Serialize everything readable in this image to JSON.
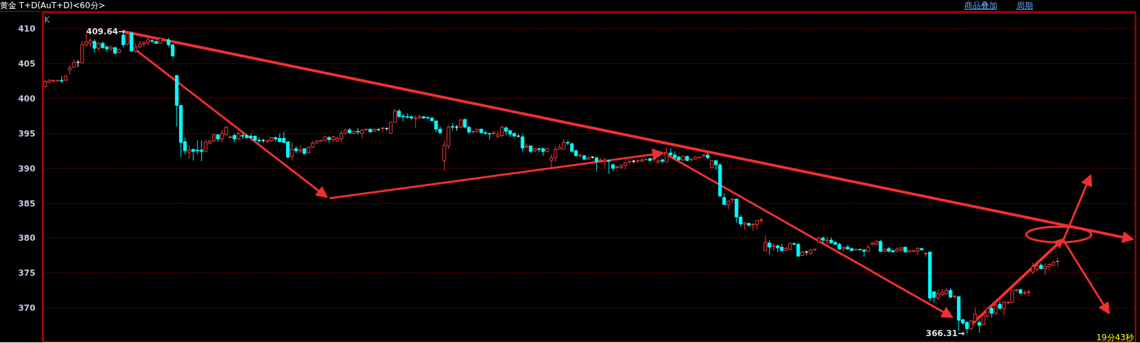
{
  "chart_data": {
    "type": "candlestick",
    "title": "黄金 T+D(AuT+D)<60分>",
    "annotations": [
      "K",
      "商品叠加",
      "周期",
      "19分43秒",
      "409.64→",
      "366.31→"
    ],
    "ylim": [
      365,
      412.3
    ],
    "yticks": [
      370,
      375,
      380,
      385,
      390,
      395,
      400,
      405,
      410
    ],
    "grid": "y",
    "tick_labels": "y",
    "categories": [
      null,
      null,
      null,
      null,
      null,
      null,
      null,
      null,
      null,
      null,
      null,
      null,
      null,
      null,
      null,
      null,
      null,
      null,
      null,
      null,
      null,
      null,
      null,
      null,
      null,
      null,
      null,
      null,
      null,
      null,
      null,
      null,
      null,
      null,
      null,
      null,
      null,
      null,
      null,
      null,
      null,
      null,
      null,
      null,
      null,
      null,
      null,
      null,
      null,
      null,
      null,
      null,
      null,
      null,
      null,
      null,
      null,
      null,
      null,
      null,
      null,
      null,
      null,
      null,
      null,
      null,
      null,
      null,
      null,
      null,
      null,
      null,
      null,
      null,
      null,
      null,
      null,
      null,
      null,
      null,
      null,
      null,
      null,
      null,
      null,
      null,
      null,
      null,
      null,
      null,
      null,
      null,
      null,
      null,
      null,
      null,
      null,
      null,
      null,
      null,
      null,
      null,
      null,
      null,
      null,
      null,
      null,
      null,
      null,
      null,
      null,
      null,
      null,
      null,
      null,
      null,
      null,
      null,
      null,
      null,
      null,
      null,
      null,
      null,
      null,
      null,
      null,
      null,
      null,
      null,
      null,
      null,
      null,
      null,
      null,
      null,
      null,
      null,
      null,
      null,
      null,
      null,
      null,
      null,
      null,
      null,
      null,
      null,
      null,
      null,
      null,
      null,
      null,
      null,
      null,
      null,
      null,
      null,
      null,
      null,
      null,
      null,
      null,
      null,
      null,
      null,
      null,
      null,
      null,
      null,
      null,
      null,
      null,
      null,
      null,
      null,
      null,
      null,
      null,
      null,
      null,
      null,
      null,
      null,
      null,
      null,
      null,
      null,
      null,
      null,
      null,
      null,
      null,
      null,
      null,
      null,
      null,
      null,
      null,
      null,
      null,
      null,
      null,
      null,
      null,
      null,
      null,
      null,
      null,
      null,
      null,
      null,
      null,
      null,
      null,
      null,
      null,
      null,
      null,
      null,
      null,
      null,
      null,
      null,
      null,
      null,
      null,
      null,
      null,
      null,
      null,
      null,
      null,
      null,
      null,
      null,
      null,
      null,
      null,
      null,
      null,
      null,
      null,
      null,
      null,
      null,
      null
    ],
    "ohlc": [
      [
        401.7,
        402.7,
        401.6,
        402.4
      ],
      [
        402.3,
        402.8,
        402.2,
        402.6
      ],
      [
        402.5,
        402.7,
        402.3,
        402.6
      ],
      [
        402.5,
        402.7,
        402.4,
        402.6
      ],
      [
        402.6,
        403.2,
        402.2,
        402.5
      ],
      [
        402.6,
        403.4,
        402.5,
        403.2
      ],
      [
        404.1,
        404.7,
        403.4,
        404.4
      ],
      [
        404.5,
        405.5,
        404.4,
        405.2
      ],
      [
        405.2,
        405.5,
        404.5,
        405.2
      ],
      [
        405.1,
        408.2,
        405.1,
        407.7
      ],
      [
        407.7,
        409.3,
        407.4,
        408.1
      ],
      [
        407.9,
        408.7,
        407.4,
        408.3
      ],
      [
        408.2,
        408.5,
        406.6,
        407.2
      ],
      [
        407.2,
        408.1,
        406.7,
        407.9
      ],
      [
        407.9,
        408.2,
        407.1,
        407.3
      ],
      [
        407.4,
        407.6,
        406.7,
        407.1
      ],
      [
        407.1,
        407.6,
        406.8,
        407.4
      ],
      [
        407.3,
        407.4,
        406.3,
        406.5
      ],
      [
        406.6,
        407.1,
        406.5,
        407.0
      ],
      [
        409.1,
        409.6,
        407.3,
        407.7
      ],
      [
        407.8,
        409.64,
        407.6,
        409.3
      ],
      [
        409.4,
        409.6,
        406.7,
        406.8
      ],
      [
        406.8,
        407.9,
        406.5,
        407.4
      ],
      [
        407.4,
        408.2,
        407.2,
        407.8
      ],
      [
        407.8,
        408.2,
        407.4,
        408.0
      ],
      [
        408.0,
        408.8,
        407.6,
        408.4
      ],
      [
        408.3,
        408.5,
        408.0,
        408.2
      ],
      [
        408.2,
        408.2,
        407.8,
        407.9
      ],
      [
        407.9,
        408.6,
        407.8,
        408.6
      ],
      [
        408.4,
        408.6,
        408.3,
        408.5
      ],
      [
        408.4,
        408.7,
        407.4,
        407.7
      ],
      [
        407.7,
        407.8,
        405.9,
        406.1
      ],
      [
        403.3,
        403.3,
        396.0,
        399.0
      ],
      [
        399.0,
        399.0,
        391.6,
        393.7
      ],
      [
        393.8,
        394.4,
        392.0,
        392.5
      ],
      [
        392.3,
        393.3,
        391.4,
        392.6
      ],
      [
        392.7,
        392.8,
        391.1,
        392.4
      ],
      [
        392.6,
        394.0,
        392.0,
        392.5
      ],
      [
        392.6,
        394.0,
        391.0,
        392.4
      ],
      [
        392.4,
        394.1,
        392.3,
        393.7
      ],
      [
        393.6,
        394.1,
        393.4,
        393.9
      ],
      [
        393.9,
        395.0,
        393.8,
        394.8
      ],
      [
        394.8,
        394.9,
        393.8,
        394.2
      ],
      [
        394.2,
        395.5,
        393.7,
        395.0
      ],
      [
        394.8,
        396.1,
        394.7,
        395.9
      ],
      [
        394.4,
        394.7,
        394.4,
        394.5
      ],
      [
        394.7,
        395.0,
        393.7,
        394.2
      ],
      [
        394.2,
        395.2,
        394.1,
        395.0
      ],
      [
        394.7,
        395.1,
        394.2,
        394.6
      ],
      [
        394.7,
        394.9,
        394.2,
        394.4
      ],
      [
        394.6,
        395.0,
        394.2,
        394.4
      ],
      [
        394.6,
        394.7,
        394.0,
        394.0
      ],
      [
        394.0,
        394.4,
        393.6,
        393.9
      ],
      [
        394.0,
        394.2,
        393.7,
        394.0
      ],
      [
        393.8,
        394.1,
        393.7,
        394.0
      ],
      [
        393.9,
        394.5,
        393.9,
        394.4
      ],
      [
        394.4,
        394.5,
        393.8,
        394.2
      ],
      [
        394.3,
        395.0,
        393.7,
        393.8
      ],
      [
        394.3,
        395.2,
        393.6,
        393.7
      ],
      [
        393.8,
        393.8,
        391.4,
        391.6
      ],
      [
        391.7,
        393.7,
        391.1,
        392.7
      ],
      [
        392.8,
        393.2,
        392.2,
        392.5
      ],
      [
        392.5,
        393.3,
        392.2,
        392.6
      ],
      [
        392.8,
        392.8,
        392.0,
        392.1
      ],
      [
        392.2,
        393.1,
        392.1,
        393.0
      ],
      [
        393.0,
        393.9,
        392.9,
        393.6
      ],
      [
        393.6,
        394.0,
        393.6,
        393.9
      ],
      [
        393.9,
        394.0,
        393.9,
        394.0
      ],
      [
        394.0,
        394.5,
        394.0,
        394.5
      ],
      [
        394.4,
        394.6,
        393.7,
        394.1
      ],
      [
        394.1,
        394.7,
        393.7,
        394.5
      ],
      [
        393.9,
        394.5,
        393.8,
        394.3
      ],
      [
        394.2,
        395.4,
        393.7,
        395.0
      ],
      [
        395.0,
        395.6,
        394.9,
        395.5
      ],
      [
        395.5,
        395.8,
        394.9,
        395.1
      ],
      [
        395.0,
        395.4,
        394.8,
        395.3
      ],
      [
        395.3,
        395.8,
        394.8,
        395.2
      ],
      [
        395.0,
        395.6,
        394.3,
        395.5
      ],
      [
        395.5,
        395.7,
        395.4,
        395.6
      ],
      [
        395.6,
        395.7,
        395.2,
        395.2
      ],
      [
        395.3,
        395.7,
        395.2,
        395.6
      ],
      [
        395.6,
        395.7,
        395.3,
        395.5
      ],
      [
        395.7,
        395.8,
        395.2,
        395.8
      ],
      [
        395.7,
        395.8,
        395.4,
        395.7
      ],
      [
        395.0,
        396.6,
        395.0,
        396.6
      ],
      [
        396.6,
        398.5,
        396.6,
        398.2
      ],
      [
        398.2,
        398.5,
        397.3,
        397.4
      ],
      [
        397.5,
        397.8,
        396.7,
        397.4
      ],
      [
        397.4,
        397.9,
        397.1,
        397.3
      ],
      [
        397.4,
        397.5,
        396.9,
        397.2
      ],
      [
        397.1,
        397.6,
        395.8,
        397.2
      ],
      [
        397.2,
        397.7,
        397.1,
        397.4
      ],
      [
        397.4,
        397.5,
        397.1,
        397.2
      ],
      [
        397.3,
        397.4,
        397.0,
        397.2
      ],
      [
        397.2,
        397.3,
        396.8,
        396.8
      ],
      [
        396.8,
        396.8,
        395.2,
        395.6
      ],
      [
        395.6,
        396.0,
        394.9,
        395.1
      ],
      [
        391.1,
        393.9,
        389.6,
        393.3
      ],
      [
        393.2,
        396.2,
        392.7,
        395.9
      ],
      [
        396.0,
        396.5,
        395.4,
        395.9
      ],
      [
        395.9,
        396.2,
        395.4,
        395.9
      ],
      [
        395.9,
        397.1,
        395.7,
        396.9
      ],
      [
        397.0,
        397.1,
        395.7,
        395.9
      ],
      [
        395.9,
        396.0,
        394.9,
        395.2
      ],
      [
        395.2,
        395.4,
        395.0,
        395.3
      ],
      [
        395.3,
        395.7,
        395.1,
        395.6
      ],
      [
        395.6,
        395.7,
        395.0,
        395.1
      ],
      [
        395.1,
        395.4,
        394.8,
        395.0
      ],
      [
        395.0,
        395.0,
        394.1,
        394.9
      ],
      [
        395.0,
        395.3,
        394.7,
        395.1
      ],
      [
        394.5,
        395.3,
        394.4,
        394.8
      ],
      [
        394.7,
        396.1,
        394.4,
        395.9
      ],
      [
        395.8,
        396.0,
        394.7,
        395.3
      ],
      [
        395.4,
        395.5,
        394.5,
        394.9
      ],
      [
        395.0,
        395.1,
        394.5,
        394.6
      ],
      [
        394.6,
        394.9,
        394.4,
        394.6
      ],
      [
        394.5,
        394.9,
        392.4,
        392.9
      ],
      [
        393.0,
        393.5,
        392.9,
        393.2
      ],
      [
        393.2,
        393.2,
        392.2,
        392.4
      ],
      [
        392.5,
        392.9,
        392.3,
        392.8
      ],
      [
        392.8,
        392.9,
        392.3,
        392.7
      ],
      [
        392.8,
        393.0,
        391.8,
        392.4
      ],
      [
        392.4,
        392.9,
        392.4,
        392.8
      ],
      [
        391.1,
        392.0,
        390.0,
        391.5
      ],
      [
        391.5,
        393.2,
        390.9,
        392.7
      ],
      [
        392.7,
        393.5,
        392.7,
        393.0
      ],
      [
        392.7,
        394.2,
        392.7,
        393.7
      ],
      [
        393.7,
        393.9,
        393.3,
        393.6
      ],
      [
        393.5,
        393.7,
        392.4,
        392.4
      ],
      [
        392.5,
        392.7,
        391.7,
        391.8
      ],
      [
        391.8,
        392.0,
        391.5,
        391.9
      ],
      [
        391.8,
        391.9,
        391.2,
        391.3
      ],
      [
        391.3,
        391.7,
        391.2,
        391.5
      ],
      [
        391.6,
        391.7,
        391.4,
        391.6
      ],
      [
        391.5,
        391.6,
        389.6,
        391.0
      ],
      [
        391.1,
        391.5,
        390.8,
        391.2
      ],
      [
        391.0,
        391.5,
        390.1,
        391.2
      ],
      [
        391.1,
        391.2,
        389.2,
        391.0
      ],
      [
        390.5,
        390.7,
        389.6,
        390.0
      ],
      [
        390.1,
        390.4,
        389.9,
        390.2
      ],
      [
        390.1,
        390.6,
        389.9,
        390.4
      ],
      [
        390.4,
        391.0,
        389.8,
        390.8
      ],
      [
        390.9,
        391.1,
        390.6,
        391.0
      ],
      [
        391.0,
        391.2,
        390.7,
        391.0
      ],
      [
        391.0,
        391.3,
        390.7,
        391.1
      ],
      [
        391.0,
        391.5,
        390.9,
        391.2
      ],
      [
        391.2,
        391.4,
        391.1,
        391.3
      ],
      [
        391.4,
        391.5,
        391.0,
        391.1
      ],
      [
        391.3,
        391.5,
        390.9,
        391.4
      ],
      [
        390.8,
        391.3,
        390.7,
        391.1
      ],
      [
        391.2,
        391.4,
        390.7,
        391.0
      ],
      [
        390.9,
        393.0,
        390.9,
        392.2
      ],
      [
        392.2,
        392.9,
        391.8,
        391.9
      ],
      [
        391.9,
        392.4,
        391.3,
        391.5
      ],
      [
        391.6,
        391.8,
        391.1,
        391.2
      ],
      [
        391.2,
        391.8,
        391.0,
        391.7
      ],
      [
        391.7,
        391.8,
        391.0,
        391.1
      ],
      [
        391.2,
        391.4,
        390.9,
        391.3
      ],
      [
        391.3,
        391.7,
        391.2,
        391.6
      ],
      [
        391.5,
        391.7,
        391.4,
        391.6
      ],
      [
        391.7,
        392.1,
        391.6,
        391.9
      ],
      [
        391.9,
        392.2,
        391.3,
        391.5
      ],
      [
        390.1,
        391.1,
        390.0,
        391.1
      ],
      [
        391.1,
        391.1,
        389.8,
        390.5
      ],
      [
        390.5,
        390.7,
        386.0,
        386.0
      ],
      [
        385.8,
        386.4,
        384.8,
        384.8
      ],
      [
        384.8,
        385.4,
        384.1,
        385.3
      ],
      [
        385.5,
        385.6,
        385.0,
        385.6
      ],
      [
        385.6,
        385.6,
        382.2,
        383.0
      ],
      [
        383.0,
        383.3,
        381.6,
        382.0
      ],
      [
        382.0,
        382.3,
        381.2,
        382.2
      ],
      [
        382.1,
        382.2,
        381.7,
        381.8
      ],
      [
        381.9,
        382.1,
        381.0,
        382.0
      ],
      [
        381.9,
        382.6,
        381.2,
        382.5
      ],
      [
        382.5,
        382.9,
        382.1,
        382.6
      ],
      [
        378.2,
        380.4,
        378.2,
        379.4
      ],
      [
        379.3,
        379.7,
        377.6,
        378.7
      ],
      [
        378.8,
        379.2,
        378.2,
        378.9
      ],
      [
        378.9,
        379.0,
        378.0,
        378.6
      ],
      [
        378.7,
        379.2,
        378.1,
        378.2
      ],
      [
        378.2,
        378.7,
        378.1,
        378.5
      ],
      [
        378.4,
        379.4,
        378.3,
        379.2
      ],
      [
        379.2,
        379.4,
        379.0,
        379.1
      ],
      [
        379.1,
        379.3,
        377.3,
        377.4
      ],
      [
        377.5,
        378.2,
        377.4,
        378.0
      ],
      [
        378.0,
        378.2,
        377.6,
        378.0
      ],
      [
        377.8,
        378.4,
        377.6,
        378.3
      ],
      [
        378.3,
        378.5,
        378.2,
        378.4
      ],
      [
        379.4,
        380.2,
        379.3,
        380.0
      ],
      [
        380.0,
        380.2,
        379.2,
        379.7
      ],
      [
        379.6,
        380.2,
        379.2,
        379.7
      ],
      [
        379.7,
        380.1,
        379.2,
        379.3
      ],
      [
        379.4,
        379.5,
        379.0,
        379.1
      ],
      [
        379.1,
        379.3,
        378.4,
        378.4
      ],
      [
        378.5,
        378.7,
        378.0,
        378.7
      ],
      [
        378.7,
        379.0,
        378.4,
        378.4
      ],
      [
        378.5,
        378.6,
        378.2,
        378.2
      ],
      [
        378.3,
        378.4,
        378.2,
        378.4
      ],
      [
        378.4,
        378.4,
        378.3,
        378.3
      ],
      [
        378.3,
        378.4,
        377.3,
        378.1
      ],
      [
        378.1,
        379.0,
        378.0,
        378.7
      ],
      [
        379.1,
        379.4,
        378.9,
        379.3
      ],
      [
        379.1,
        379.7,
        379.0,
        379.5
      ],
      [
        379.5,
        379.7,
        378.0,
        378.1
      ],
      [
        378.1,
        378.5,
        378.0,
        378.4
      ],
      [
        378.5,
        378.7,
        378.0,
        378.1
      ],
      [
        378.2,
        378.3,
        378.0,
        378.0
      ],
      [
        378.1,
        378.7,
        378.0,
        378.4
      ],
      [
        378.3,
        378.7,
        378.0,
        378.6
      ],
      [
        378.7,
        378.7,
        378.0,
        378.0
      ],
      [
        378.0,
        378.2,
        378.0,
        378.2
      ],
      [
        378.1,
        378.2,
        378.0,
        378.2
      ],
      [
        378.1,
        378.7,
        377.6,
        378.5
      ],
      [
        378.5,
        378.6,
        378.2,
        378.3
      ],
      [
        377.7,
        378.0,
        377.3,
        377.8
      ],
      [
        378.0,
        378.0,
        370.9,
        371.4
      ],
      [
        372.3,
        372.4,
        370.7,
        371.5
      ],
      [
        371.4,
        372.7,
        371.1,
        372.0
      ],
      [
        371.9,
        372.7,
        371.6,
        372.2
      ],
      [
        372.0,
        372.8,
        371.9,
        372.5
      ],
      [
        372.5,
        372.8,
        371.5,
        371.5
      ],
      [
        371.6,
        371.8,
        371.2,
        371.7
      ],
      [
        371.6,
        371.7,
        366.7,
        368.2
      ],
      [
        368.3,
        368.4,
        367.6,
        367.8
      ],
      [
        367.9,
        368.1,
        366.31,
        367.0
      ],
      [
        367.0,
        368.3,
        366.8,
        368.1
      ],
      [
        368.1,
        370.0,
        367.9,
        369.1
      ],
      [
        367.9,
        368.2,
        366.4,
        367.5
      ],
      [
        367.6,
        369.1,
        367.5,
        368.9
      ],
      [
        368.8,
        370.1,
        368.5,
        369.9
      ],
      [
        369.9,
        370.1,
        368.6,
        369.2
      ],
      [
        369.2,
        370.6,
        369.0,
        370.4
      ],
      [
        370.5,
        371.0,
        369.8,
        369.9
      ],
      [
        369.9,
        371.0,
        368.9,
        370.8
      ],
      [
        370.7,
        370.8,
        370.5,
        370.8
      ],
      [
        370.8,
        372.5,
        370.7,
        372.5
      ],
      [
        372.5,
        372.7,
        372.2,
        372.6
      ],
      [
        372.6,
        372.7,
        371.9,
        372.1
      ],
      [
        372.1,
        372.5,
        371.8,
        372.2
      ],
      [
        372.2,
        372.6,
        371.7,
        372.3
      ],
      [
        375.1,
        376.5,
        374.8,
        375.9
      ],
      [
        375.5,
        376.5,
        375.2,
        376.0
      ],
      [
        376.1,
        376.4,
        375.5,
        375.6
      ],
      [
        375.6,
        376.4,
        374.7,
        375.9
      ],
      [
        375.9,
        376.4,
        375.3,
        376.2
      ],
      [
        376.1,
        376.8,
        376.1,
        376.5
      ],
      [
        376.6,
        377.2,
        375.9,
        376.7
      ]
    ]
  }
}
